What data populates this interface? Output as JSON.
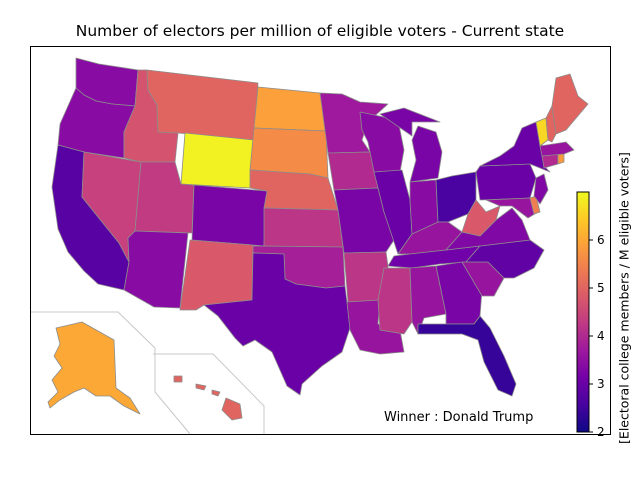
{
  "title": "Number of electors per million of eligible voters - Current state",
  "winner_label": "Winner : Donald Trump",
  "colorbar": {
    "label": "[Electoral college members / M eligible voters]",
    "min": 2,
    "max": 7,
    "ticks": [
      "2",
      "3",
      "4",
      "5",
      "6"
    ],
    "colormap": [
      "#0d0887",
      "#46039f",
      "#7201a8",
      "#9c179e",
      "#bd3786",
      "#d8576b",
      "#ed7953",
      "#fb9f3a",
      "#fdca26",
      "#f0f921"
    ]
  },
  "regions": {
    "WA": 3.4,
    "OR": 3.4,
    "CA": 2.8,
    "NV": 4.4,
    "ID": 4.7,
    "MT": 5.0,
    "WY": 6.9,
    "UT": 4.3,
    "AZ": 3.4,
    "CO": 3.2,
    "NM": 4.8,
    "ND": 5.9,
    "SD": 5.6,
    "NE": 5.0,
    "KS": 4.2,
    "OK": 3.8,
    "TX": 3.0,
    "MN": 3.7,
    "IA": 4.0,
    "MO": 3.2,
    "AR": 4.2,
    "LA": 3.6,
    "WI": 3.4,
    "IL": 3.0,
    "MI": 3.2,
    "IN": 3.4,
    "OH": 2.6,
    "KY": 3.6,
    "TN": 3.1,
    "MS": 4.2,
    "AL": 3.6,
    "GA": 3.2,
    "FL": 2.4,
    "SC": 3.6,
    "NC": 2.9,
    "VA": 3.3,
    "WV": 4.8,
    "PA": 3.0,
    "NY": 3.0,
    "VT": 6.6,
    "NH": 5.0,
    "ME": 5.0,
    "MA": 3.6,
    "CT": 4.0,
    "NJ": 3.3,
    "MD": 3.6,
    "DE": 5.4,
    "RI": 5.8,
    "AK": 6.0,
    "HI": 5.0
  }
}
